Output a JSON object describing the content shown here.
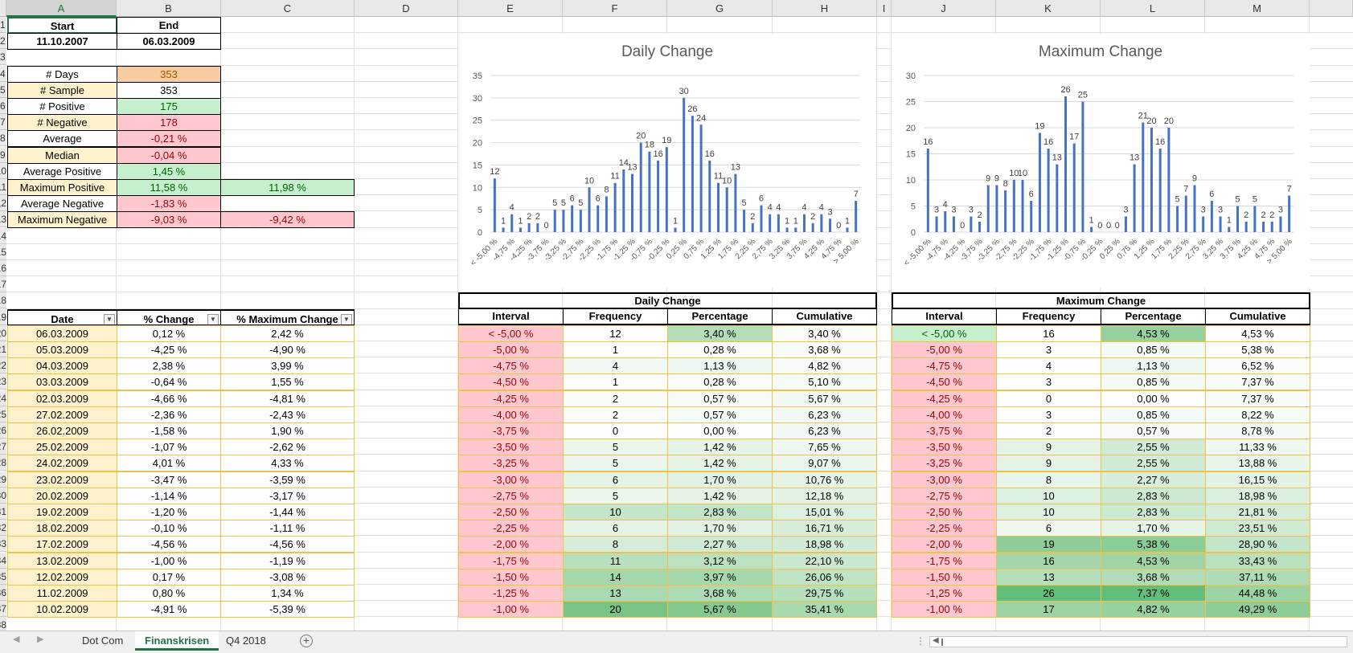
{
  "columns": [
    "A",
    "B",
    "C",
    "D",
    "E",
    "F",
    "G",
    "H",
    "I",
    "J",
    "K",
    "L",
    "M"
  ],
  "row_numbers": [
    "1",
    "2",
    "3",
    "4",
    "5",
    "6",
    "7",
    "8",
    "9",
    "10",
    "11",
    "12",
    "13",
    "14",
    "15",
    "16",
    "17",
    "18",
    "19",
    "20",
    "21",
    "22",
    "23",
    "24",
    "25",
    "26",
    "27",
    "28",
    "29",
    "30",
    "31",
    "32",
    "33",
    "34",
    "35",
    "36",
    "37",
    "38"
  ],
  "summary": {
    "start_label": "Start",
    "end_label": "End",
    "start_value": "11.10.2007",
    "end_value": "06.03.2009",
    "stats": [
      {
        "label": "# Days",
        "value": "353",
        "extra": "",
        "bg": "#f8cba0",
        "fg": "#9c5700",
        "lbg": "#ffffff"
      },
      {
        "label": "# Sample",
        "value": "353",
        "extra": "",
        "bg": "#ffffff",
        "fg": "#000000",
        "lbg": "#fff2cc"
      },
      {
        "label": "# Positive",
        "value": "175",
        "extra": "",
        "bg": "#c6efce",
        "fg": "#006100",
        "lbg": "#ffffff"
      },
      {
        "label": "# Negative",
        "value": "178",
        "extra": "",
        "bg": "#ffc7ce",
        "fg": "#9c0006",
        "lbg": "#fff2cc"
      },
      {
        "label": "Average",
        "value": "-0,21 %",
        "extra": "",
        "bg": "#ffc7ce",
        "fg": "#9c0006",
        "lbg": "#ffffff"
      },
      {
        "label": "Median",
        "value": "-0,04 %",
        "extra": "",
        "bg": "#ffc7ce",
        "fg": "#9c0006",
        "lbg": "#fff2cc"
      },
      {
        "label": "Average Positive",
        "value": "1,45 %",
        "extra": "",
        "bg": "#c6efce",
        "fg": "#006100",
        "lbg": "#ffffff"
      },
      {
        "label": "Maximum Positive",
        "value": "11,58 %",
        "extra": "11,98 %",
        "bg": "#c6efce",
        "fg": "#006100",
        "lbg": "#fff2cc"
      },
      {
        "label": "Average Negative",
        "value": "-1,83 %",
        "extra": "",
        "bg": "#ffc7ce",
        "fg": "#9c0006",
        "lbg": "#ffffff"
      },
      {
        "label": "Maximum Negative",
        "value": "-9,03 %",
        "extra": "-9,42 %",
        "bg": "#ffc7ce",
        "fg": "#9c0006",
        "lbg": "#fff2cc"
      }
    ]
  },
  "data_table": {
    "headers": [
      "Date",
      "% Change",
      "% Maximum Change"
    ],
    "rows": [
      [
        "06.03.2009",
        "0,12 %",
        "2,42 %"
      ],
      [
        "05.03.2009",
        "-4,25 %",
        "-4,90 %"
      ],
      [
        "04.03.2009",
        "2,38 %",
        "3,99 %"
      ],
      [
        "03.03.2009",
        "-0,64 %",
        "1,55 %"
      ],
      [
        "02.03.2009",
        "-4,66 %",
        "-4,81 %"
      ],
      [
        "27.02.2009",
        "-2,36 %",
        "-2,43 %"
      ],
      [
        "26.02.2009",
        "-1,58 %",
        "1,90 %"
      ],
      [
        "25.02.2009",
        "-1,07 %",
        "-2,62 %"
      ],
      [
        "24.02.2009",
        "4,01 %",
        "4,33 %"
      ],
      [
        "23.02.2009",
        "-3,47 %",
        "-3,59 %"
      ],
      [
        "20.02.2009",
        "-1,14 %",
        "-3,17 %"
      ],
      [
        "19.02.2009",
        "-1,20 %",
        "-1,44 %"
      ],
      [
        "18.02.2009",
        "-0,10 %",
        "-1,11 %"
      ],
      [
        "17.02.2009",
        "-4,56 %",
        "-4,56 %"
      ],
      [
        "13.02.2009",
        "-1,00 %",
        "-1,19 %"
      ],
      [
        "12.02.2009",
        "0,17 %",
        "-3,08 %"
      ],
      [
        "11.02.2009",
        "0,80 %",
        "1,34 %"
      ],
      [
        "10.02.2009",
        "-4,91 %",
        "-5,39 %"
      ]
    ]
  },
  "freq_daily": {
    "title": "Daily Change",
    "headers": [
      "Interval",
      "Frequency",
      "Percentage",
      "Cumulative"
    ],
    "rows": [
      {
        "interval": "< -5,00 %",
        "freq": "12",
        "pct": "3,40 %",
        "cum": "3,40 %",
        "ibg": "#ffc7ce",
        "ifg": "#9c0006",
        "fbg": "#ffffff",
        "pbg": "#b4deba",
        "cbg": "#fbfdfb"
      },
      {
        "interval": "-5,00 %",
        "freq": "1",
        "pct": "0,28 %",
        "cum": "3,68 %",
        "ibg": "#ffc7ce",
        "ifg": "#9c0006",
        "fbg": "#ffffff",
        "pbg": "#fbfdfb",
        "cbg": "#f9fcf9"
      },
      {
        "interval": "-4,75 %",
        "freq": "4",
        "pct": "1,13 %",
        "cum": "4,82 %",
        "ibg": "#ffc7ce",
        "ifg": "#9c0006",
        "fbg": "#f1f9f2",
        "pbg": "#eef8f0",
        "cbg": "#f6fbf6"
      },
      {
        "interval": "-4,50 %",
        "freq": "1",
        "pct": "0,28 %",
        "cum": "5,10 %",
        "ibg": "#ffc7ce",
        "ifg": "#9c0006",
        "fbg": "#ffffff",
        "pbg": "#fbfdfb",
        "cbg": "#f5fbf5"
      },
      {
        "interval": "-4,25 %",
        "freq": "2",
        "pct": "0,57 %",
        "cum": "5,67 %",
        "ibg": "#ffc7ce",
        "ifg": "#9c0006",
        "fbg": "#fafdfa",
        "pbg": "#f6fbf6",
        "cbg": "#f3faf4"
      },
      {
        "interval": "-4,00 %",
        "freq": "2",
        "pct": "0,57 %",
        "cum": "6,23 %",
        "ibg": "#ffc7ce",
        "ifg": "#9c0006",
        "fbg": "#fafdfa",
        "pbg": "#f6fbf6",
        "cbg": "#f2f9f3"
      },
      {
        "interval": "-3,75 %",
        "freq": "0",
        "pct": "0,00 %",
        "cum": "6,23 %",
        "ibg": "#ffc7ce",
        "ifg": "#9c0006",
        "fbg": "#ffffff",
        "pbg": "#ffffff",
        "cbg": "#f2f9f3"
      },
      {
        "interval": "-3,50 %",
        "freq": "5",
        "pct": "1,42 %",
        "cum": "7,65 %",
        "ibg": "#ffc7ce",
        "ifg": "#9c0006",
        "fbg": "#eaf6ec",
        "pbg": "#e6f4e8",
        "cbg": "#eef8f0"
      },
      {
        "interval": "-3,25 %",
        "freq": "5",
        "pct": "1,42 %",
        "cum": "9,07 %",
        "ibg": "#ffc7ce",
        "ifg": "#9c0006",
        "fbg": "#eaf6ec",
        "pbg": "#e6f4e8",
        "cbg": "#eaf6ec"
      },
      {
        "interval": "-3,00 %",
        "freq": "6",
        "pct": "1,70 %",
        "cum": "10,76 %",
        "ibg": "#ffc7ce",
        "ifg": "#9c0006",
        "fbg": "#e4f3e6",
        "pbg": "#e1f2e4",
        "cbg": "#e6f4e8"
      },
      {
        "interval": "-2,75 %",
        "freq": "5",
        "pct": "1,42 %",
        "cum": "12,18 %",
        "ibg": "#ffc7ce",
        "ifg": "#9c0006",
        "fbg": "#eaf6ec",
        "pbg": "#e6f4e8",
        "cbg": "#e2f2e5"
      },
      {
        "interval": "-2,50 %",
        "freq": "10",
        "pct": "2,83 %",
        "cum": "15,01 %",
        "ibg": "#ffc7ce",
        "ifg": "#9c0006",
        "fbg": "#c4e5c9",
        "pbg": "#c2e4c7",
        "cbg": "#dcf0df"
      },
      {
        "interval": "-2,25 %",
        "freq": "6",
        "pct": "1,70 %",
        "cum": "16,71 %",
        "ibg": "#ffc7ce",
        "ifg": "#9c0006",
        "fbg": "#e4f3e6",
        "pbg": "#e1f2e4",
        "cbg": "#d8eedb"
      },
      {
        "interval": "-2,00 %",
        "freq": "8",
        "pct": "2,27 %",
        "cum": "18,98 %",
        "ibg": "#ffc7ce",
        "ifg": "#9c0006",
        "fbg": "#d6ecd9",
        "pbg": "#d1ead5",
        "cbg": "#d2ebd6"
      },
      {
        "interval": "-1,75 %",
        "freq": "11",
        "pct": "3,12 %",
        "cum": "22,10 %",
        "ibg": "#ffc7ce",
        "ifg": "#9c0006",
        "fbg": "#b8e0be",
        "pbg": "#bbe1c0",
        "cbg": "#cae8cf"
      },
      {
        "interval": "-1,50 %",
        "freq": "14",
        "pct": "3,97 %",
        "cum": "26,06 %",
        "ibg": "#ffc7ce",
        "ifg": "#9c0006",
        "fbg": "#a5d7ac",
        "pbg": "#a6d8ad",
        "cbg": "#c0e3c5"
      },
      {
        "interval": "-1,25 %",
        "freq": "13",
        "pct": "3,68 %",
        "cum": "29,75 %",
        "ibg": "#ffc7ce",
        "ifg": "#9c0006",
        "fbg": "#abdab2",
        "pbg": "#addbb4",
        "cbg": "#b6dfbc"
      },
      {
        "interval": "-1,00 %",
        "freq": "20",
        "pct": "5,67 %",
        "cum": "35,41 %",
        "ibg": "#ffc7ce",
        "ifg": "#9c0006",
        "fbg": "#79c386",
        "pbg": "#85c990",
        "cbg": "#a8d9af"
      }
    ]
  },
  "freq_max": {
    "title": "Maximum Change",
    "headers": [
      "Interval",
      "Frequency",
      "Percentage",
      "Cumulative"
    ],
    "rows": [
      {
        "interval": "< -5,00 %",
        "freq": "16",
        "pct": "4,53 %",
        "cum": "4,53 %",
        "ibg": "#c6efce",
        "ifg": "#006100",
        "fbg": "#ffffff",
        "pbg": "#97d19f",
        "cbg": "#ffffff"
      },
      {
        "interval": "-5,00 %",
        "freq": "3",
        "pct": "0,85 %",
        "cum": "5,38 %",
        "ibg": "#ffc7ce",
        "ifg": "#9c0006",
        "fbg": "#ffffff",
        "pbg": "#f4faf5",
        "cbg": "#fdfefd"
      },
      {
        "interval": "-4,75 %",
        "freq": "4",
        "pct": "1,13 %",
        "cum": "6,52 %",
        "ibg": "#ffc7ce",
        "ifg": "#9c0006",
        "fbg": "#ffffff",
        "pbg": "#eef8f0",
        "cbg": "#fafdfa"
      },
      {
        "interval": "-4,50 %",
        "freq": "3",
        "pct": "0,85 %",
        "cum": "7,37 %",
        "ibg": "#ffc7ce",
        "ifg": "#9c0006",
        "fbg": "#ffffff",
        "pbg": "#f4faf5",
        "cbg": "#f8fcf8"
      },
      {
        "interval": "-4,25 %",
        "freq": "0",
        "pct": "0,00 %",
        "cum": "7,37 %",
        "ibg": "#ffc7ce",
        "ifg": "#9c0006",
        "fbg": "#ffffff",
        "pbg": "#ffffff",
        "cbg": "#f8fcf8"
      },
      {
        "interval": "-4,00 %",
        "freq": "3",
        "pct": "0,85 %",
        "cum": "8,22 %",
        "ibg": "#ffc7ce",
        "ifg": "#9c0006",
        "fbg": "#ffffff",
        "pbg": "#f4faf5",
        "cbg": "#f6fbf6"
      },
      {
        "interval": "-3,75 %",
        "freq": "2",
        "pct": "0,57 %",
        "cum": "8,78 %",
        "ibg": "#ffc7ce",
        "ifg": "#9c0006",
        "fbg": "#ffffff",
        "pbg": "#f8fcf8",
        "cbg": "#f4faf5"
      },
      {
        "interval": "-3,50 %",
        "freq": "9",
        "pct": "2,55 %",
        "cum": "11,33 %",
        "ibg": "#ffc7ce",
        "ifg": "#9c0006",
        "fbg": "#e4f3e6",
        "pbg": "#d2ebd6",
        "cbg": "#eef8f0"
      },
      {
        "interval": "-3,25 %",
        "freq": "9",
        "pct": "2,55 %",
        "cum": "13,88 %",
        "ibg": "#ffc7ce",
        "ifg": "#9c0006",
        "fbg": "#e4f3e6",
        "pbg": "#d2ebd6",
        "cbg": "#e8f5ea"
      },
      {
        "interval": "-3,00 %",
        "freq": "8",
        "pct": "2,27 %",
        "cum": "16,15 %",
        "ibg": "#ffc7ce",
        "ifg": "#9c0006",
        "fbg": "#e8f5ea",
        "pbg": "#d8eedb",
        "cbg": "#e2f2e5"
      },
      {
        "interval": "-2,75 %",
        "freq": "10",
        "pct": "2,83 %",
        "cum": "18,98 %",
        "ibg": "#ffc7ce",
        "ifg": "#9c0006",
        "fbg": "#dcf0df",
        "pbg": "#cce9d1",
        "cbg": "#dbefde"
      },
      {
        "interval": "-2,50 %",
        "freq": "10",
        "pct": "2,83 %",
        "cum": "21,81 %",
        "ibg": "#ffc7ce",
        "ifg": "#9c0006",
        "fbg": "#dcf0df",
        "pbg": "#cce9d1",
        "cbg": "#d4ecd8"
      },
      {
        "interval": "-2,25 %",
        "freq": "6",
        "pct": "1,70 %",
        "cum": "23,51 %",
        "ibg": "#ffc7ce",
        "ifg": "#9c0006",
        "fbg": "#eef8f0",
        "pbg": "#e6f4e8",
        "cbg": "#d0ead4"
      },
      {
        "interval": "-2,00 %",
        "freq": "19",
        "pct": "5,38 %",
        "cum": "28,90 %",
        "ibg": "#ffc7ce",
        "ifg": "#9c0006",
        "fbg": "#8fcd98",
        "pbg": "#8ccc96",
        "cbg": "#c4e5c9"
      },
      {
        "interval": "-1,75 %",
        "freq": "16",
        "pct": "4,53 %",
        "cum": "33,43 %",
        "ibg": "#ffc7ce",
        "ifg": "#9c0006",
        "fbg": "#a3d6aa",
        "pbg": "#9ed4a6",
        "cbg": "#b9e0bf"
      },
      {
        "interval": "-1,50 %",
        "freq": "13",
        "pct": "3,68 %",
        "cum": "37,11 %",
        "ibg": "#ffc7ce",
        "ifg": "#9c0006",
        "fbg": "#b6dfbc",
        "pbg": "#b1dcb7",
        "cbg": "#afdcb6"
      },
      {
        "interval": "-1,25 %",
        "freq": "26",
        "pct": "7,37 %",
        "cum": "44,48 %",
        "ibg": "#ffc7ce",
        "ifg": "#9c0006",
        "fbg": "#63be7b",
        "pbg": "#63be7b",
        "cbg": "#9cd3a4"
      },
      {
        "interval": "-1,00 %",
        "freq": "17",
        "pct": "4,82 %",
        "cum": "49,29 %",
        "ibg": "#ffc7ce",
        "ifg": "#9c0006",
        "fbg": "#9cd3a4",
        "pbg": "#97d19f",
        "cbg": "#8fcd98"
      }
    ]
  },
  "chart_data": [
    {
      "type": "bar",
      "title": "Daily Change",
      "categories": [
        "< -5,00 %",
        "-5,00 %",
        "-4,75 %",
        "-4,50 %",
        "-4,25 %",
        "-4,00 %",
        "-3,75 %",
        "-3,50 %",
        "-3,25 %",
        "-3,00 %",
        "-2,75 %",
        "-2,50 %",
        "-2,25 %",
        "-2,00 %",
        "-1,75 %",
        "-1,50 %",
        "-1,25 %",
        "-1,00 %",
        "-0,75 %",
        "-0,50 %",
        "-0,25 %",
        "0,00 %",
        "0,25 %",
        "0,50 %",
        "0,75 %",
        "1,00 %",
        "1,25 %",
        "1,50 %",
        "1,75 %",
        "2,00 %",
        "2,25 %",
        "2,50 %",
        "2,75 %",
        "3,00 %",
        "3,25 %",
        "3,50 %",
        "3,75 %",
        "4,00 %",
        "4,25 %",
        "4,50 %",
        "4,75 %",
        "5,00 %",
        "> 5,00 %"
      ],
      "values": [
        12,
        1,
        4,
        1,
        2,
        2,
        0,
        5,
        5,
        6,
        5,
        10,
        6,
        8,
        11,
        14,
        13,
        20,
        18,
        16,
        19,
        1,
        30,
        26,
        24,
        16,
        11,
        10,
        13,
        5,
        2,
        6,
        4,
        4,
        1,
        1,
        4,
        2,
        4,
        3,
        0,
        1,
        7
      ],
      "tick_labels": [
        "< -5,00 %",
        "-4,75 %",
        "-4,25 %",
        "-3,75 %",
        "-3,25 %",
        "-2,75 %",
        "-2,25 %",
        "-1,75 %",
        "-1,25 %",
        "-0,75 %",
        "-0,25 %",
        "0,25 %",
        "0,75 %",
        "1,25 %",
        "1,75 %",
        "2,25 %",
        "2,75 %",
        "3,25 %",
        "3,75 %",
        "4,25 %",
        "4,75 %",
        "> 5,00 %"
      ],
      "ylim": [
        0,
        35
      ],
      "yticks": [
        "0",
        "5",
        "10",
        "15",
        "20",
        "25",
        "30",
        "35"
      ],
      "grid": true,
      "bar_color": "#4472c4"
    },
    {
      "type": "bar",
      "title": "Maximum Change",
      "categories": [
        "< -5,00 %",
        "-5,00 %",
        "-4,75 %",
        "-4,50 %",
        "-4,25 %",
        "-4,00 %",
        "-3,75 %",
        "-3,50 %",
        "-3,25 %",
        "-3,00 %",
        "-2,75 %",
        "-2,50 %",
        "-2,25 %",
        "-2,00 %",
        "-1,75 %",
        "-1,50 %",
        "-1,25 %",
        "-1,00 %",
        "-0,75 %",
        "-0,50 %",
        "-0,25 %",
        "0,00 %",
        "0,25 %",
        "0,50 %",
        "0,75 %",
        "1,00 %",
        "1,25 %",
        "1,50 %",
        "1,75 %",
        "2,00 %",
        "2,25 %",
        "2,50 %",
        "2,75 %",
        "3,00 %",
        "3,25 %",
        "3,50 %",
        "3,75 %",
        "4,00 %",
        "4,25 %",
        "4,50 %",
        "4,75 %",
        "5,00 %",
        "> 5,00 %"
      ],
      "values": [
        16,
        3,
        4,
        3,
        0,
        3,
        2,
        9,
        9,
        8,
        10,
        10,
        6,
        19,
        16,
        13,
        26,
        17,
        25,
        1,
        0,
        0,
        0,
        3,
        13,
        21,
        20,
        16,
        20,
        5,
        7,
        9,
        3,
        6,
        3,
        1,
        5,
        2,
        5,
        2,
        2,
        3,
        7
      ],
      "tick_labels": [
        "< -5,00 %",
        "-4,75 %",
        "-4,25 %",
        "-3,75 %",
        "-3,25 %",
        "-2,75 %",
        "-2,25 %",
        "-1,75 %",
        "-1,25 %",
        "-0,75 %",
        "-0,25 %",
        "0,25 %",
        "0,75 %",
        "1,25 %",
        "1,75 %",
        "2,25 %",
        "2,75 %",
        "3,25 %",
        "3,75 %",
        "4,25 %",
        "4,75 %",
        "> 5,00 %"
      ],
      "ylim": [
        0,
        30
      ],
      "yticks": [
        "0",
        "5",
        "10",
        "15",
        "20",
        "25",
        "30"
      ],
      "grid": true,
      "bar_color": "#4472c4"
    }
  ],
  "sheet_tabs": {
    "tabs": [
      "Dot Com",
      "Finanskrisen",
      "Q4 2018"
    ],
    "active": "Finanskrisen",
    "add_icon": "plus-circle-icon",
    "prev_icon": "triangle-left-icon",
    "next_icon": "triangle-right-icon"
  },
  "colors": {
    "accent": "#217346",
    "bar": "#4472c4",
    "table_border": "#f0c24a",
    "positive_fill": "#c6efce",
    "negative_fill": "#ffc7ce"
  }
}
